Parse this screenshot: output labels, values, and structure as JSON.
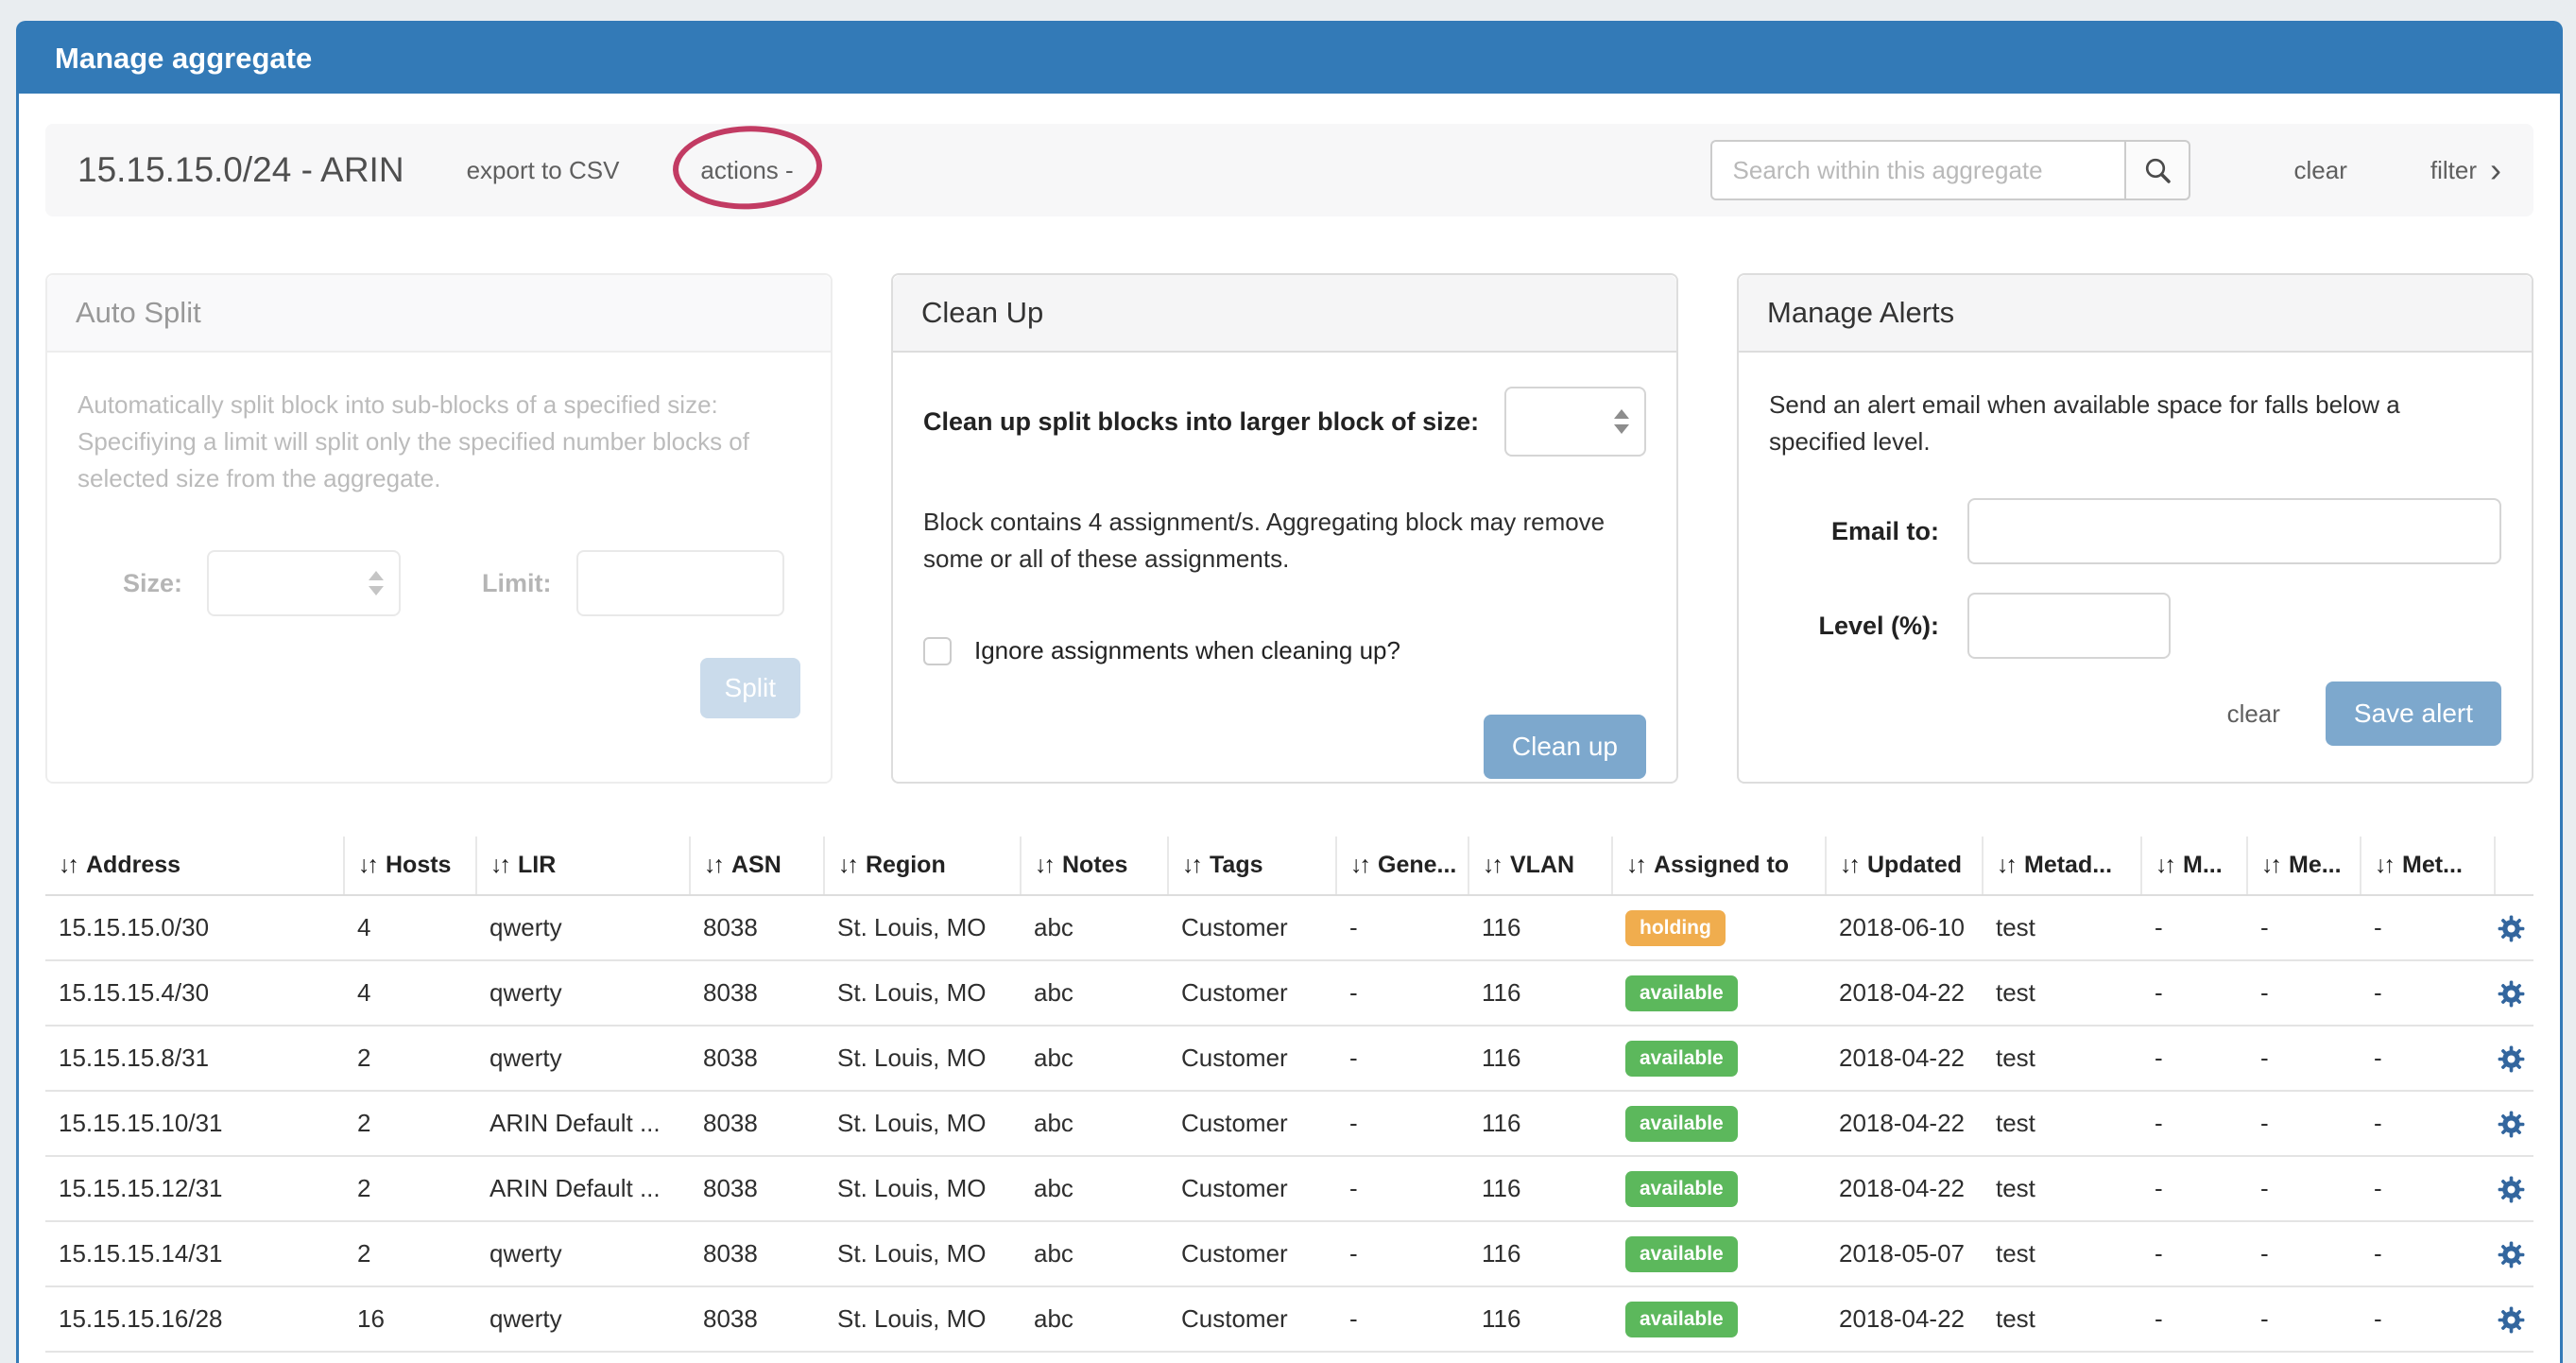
{
  "window": {
    "title": "Manage aggregate"
  },
  "toolbar": {
    "aggregate_title": "15.15.15.0/24 - ARIN",
    "export_csv_label": "export to CSV",
    "actions_label": "actions -",
    "search_placeholder": "Search within this aggregate",
    "clear_label": "clear",
    "filter_label": "filter",
    "filter_chevron": "›"
  },
  "panels": {
    "auto_split": {
      "title": "Auto Split",
      "description": "Automatically split block into sub-blocks of a specified size: Specifiying a limit will split only the specified number blocks of selected size from the aggregate.",
      "size_label": "Size:",
      "limit_label": "Limit:",
      "split_button": "Split"
    },
    "clean_up": {
      "title": "Clean Up",
      "size_label": "Clean up split blocks into larger block of size:",
      "info": "Block contains 4 assignment/s. Aggregating block may remove some or all of these assignments.",
      "checkbox_label": "Ignore assignments when cleaning up?",
      "button": "Clean up"
    },
    "manage_alerts": {
      "title": "Manage Alerts",
      "description": "Send an alert email when available space for falls below a specified level.",
      "email_label": "Email to:",
      "level_label": "Level (%):",
      "clear_label": "clear",
      "save_button": "Save alert"
    }
  },
  "table": {
    "sort_icon": "↓↑",
    "columns": [
      "Address",
      "Hosts",
      "LIR",
      "ASN",
      "Region",
      "Notes",
      "Tags",
      "Gene...",
      "VLAN",
      "Assigned to",
      "Updated",
      "Metad...",
      "M...",
      "Me...",
      "Met..."
    ],
    "rows": [
      {
        "address": "15.15.15.0/30",
        "hosts": "4",
        "lir": "qwerty",
        "asn": "8038",
        "region": "St. Louis, MO",
        "notes": "abc",
        "tags": "Customer",
        "gene": "-",
        "vlan": "116",
        "assigned": "holding",
        "updated": "2018-06-10",
        "metad": "test",
        "m1": "-",
        "m2": "-",
        "m3": "-"
      },
      {
        "address": "15.15.15.4/30",
        "hosts": "4",
        "lir": "qwerty",
        "asn": "8038",
        "region": "St. Louis, MO",
        "notes": "abc",
        "tags": "Customer",
        "gene": "-",
        "vlan": "116",
        "assigned": "available",
        "updated": "2018-04-22",
        "metad": "test",
        "m1": "-",
        "m2": "-",
        "m3": "-"
      },
      {
        "address": "15.15.15.8/31",
        "hosts": "2",
        "lir": "qwerty",
        "asn": "8038",
        "region": "St. Louis, MO",
        "notes": "abc",
        "tags": "Customer",
        "gene": "-",
        "vlan": "116",
        "assigned": "available",
        "updated": "2018-04-22",
        "metad": "test",
        "m1": "-",
        "m2": "-",
        "m3": "-"
      },
      {
        "address": "15.15.15.10/31",
        "hosts": "2",
        "lir": "ARIN Default ...",
        "asn": "8038",
        "region": "St. Louis, MO",
        "notes": "abc",
        "tags": "Customer",
        "gene": "-",
        "vlan": "116",
        "assigned": "available",
        "updated": "2018-04-22",
        "metad": "test",
        "m1": "-",
        "m2": "-",
        "m3": "-"
      },
      {
        "address": "15.15.15.12/31",
        "hosts": "2",
        "lir": "ARIN Default ...",
        "asn": "8038",
        "region": "St. Louis, MO",
        "notes": "abc",
        "tags": "Customer",
        "gene": "-",
        "vlan": "116",
        "assigned": "available",
        "updated": "2018-04-22",
        "metad": "test",
        "m1": "-",
        "m2": "-",
        "m3": "-"
      },
      {
        "address": "15.15.15.14/31",
        "hosts": "2",
        "lir": "qwerty",
        "asn": "8038",
        "region": "St. Louis, MO",
        "notes": "abc",
        "tags": "Customer",
        "gene": "-",
        "vlan": "116",
        "assigned": "available",
        "updated": "2018-05-07",
        "metad": "test",
        "m1": "-",
        "m2": "-",
        "m3": "-"
      },
      {
        "address": "15.15.15.16/28",
        "hosts": "16",
        "lir": "qwerty",
        "asn": "8038",
        "region": "St. Louis, MO",
        "notes": "abc",
        "tags": "Customer",
        "gene": "-",
        "vlan": "116",
        "assigned": "available",
        "updated": "2018-04-22",
        "metad": "test",
        "m1": "-",
        "m2": "-",
        "m3": "-"
      }
    ]
  },
  "colors": {
    "header_blue": "#337ab7",
    "page_background": "#e9edf0",
    "button_blue": "#7da8cd",
    "badge_holding": "#f0ad4e",
    "badge_available": "#5cb85c",
    "gear_blue": "#33669e",
    "annotation_red": "#c23b63"
  }
}
